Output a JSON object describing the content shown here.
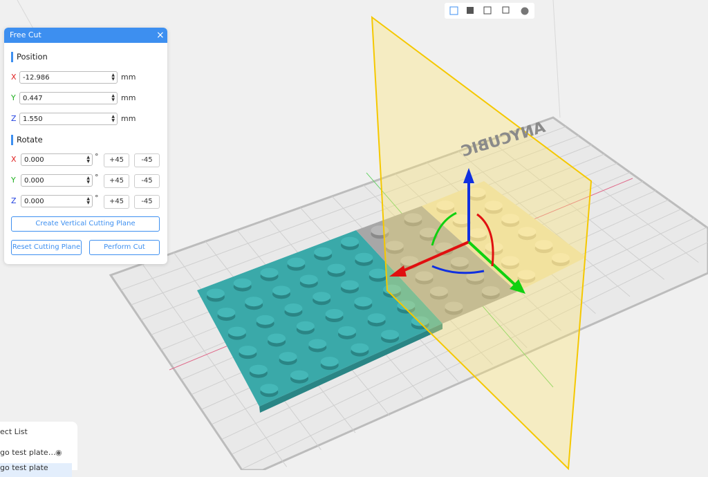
{
  "panel": {
    "title": "Free Cut",
    "position": {
      "heading": "Position",
      "fields": [
        {
          "axis": "X",
          "value": "-12.986",
          "unit": "mm"
        },
        {
          "axis": "Y",
          "value": "0.447",
          "unit": "mm"
        },
        {
          "axis": "Z",
          "value": "1.550",
          "unit": "mm"
        }
      ]
    },
    "rotate": {
      "heading": "Rotate",
      "fields": [
        {
          "axis": "X",
          "value": "0.000",
          "unit": "°",
          "plus": "+45",
          "minus": "-45"
        },
        {
          "axis": "Y",
          "value": "0.000",
          "unit": "°",
          "plus": "+45",
          "minus": "-45"
        },
        {
          "axis": "Z",
          "value": "0.000",
          "unit": "°",
          "plus": "+45",
          "minus": "-45"
        }
      ]
    },
    "buttons": {
      "create": "Create Vertical Cutting Plane",
      "reset": "Reset Cutting Plane",
      "perform": "Perform Cut"
    }
  },
  "object_list": {
    "title": "ect List",
    "items": [
      "go test plate…",
      "go test plate"
    ]
  },
  "bed_logo": "ANYCUBIC"
}
